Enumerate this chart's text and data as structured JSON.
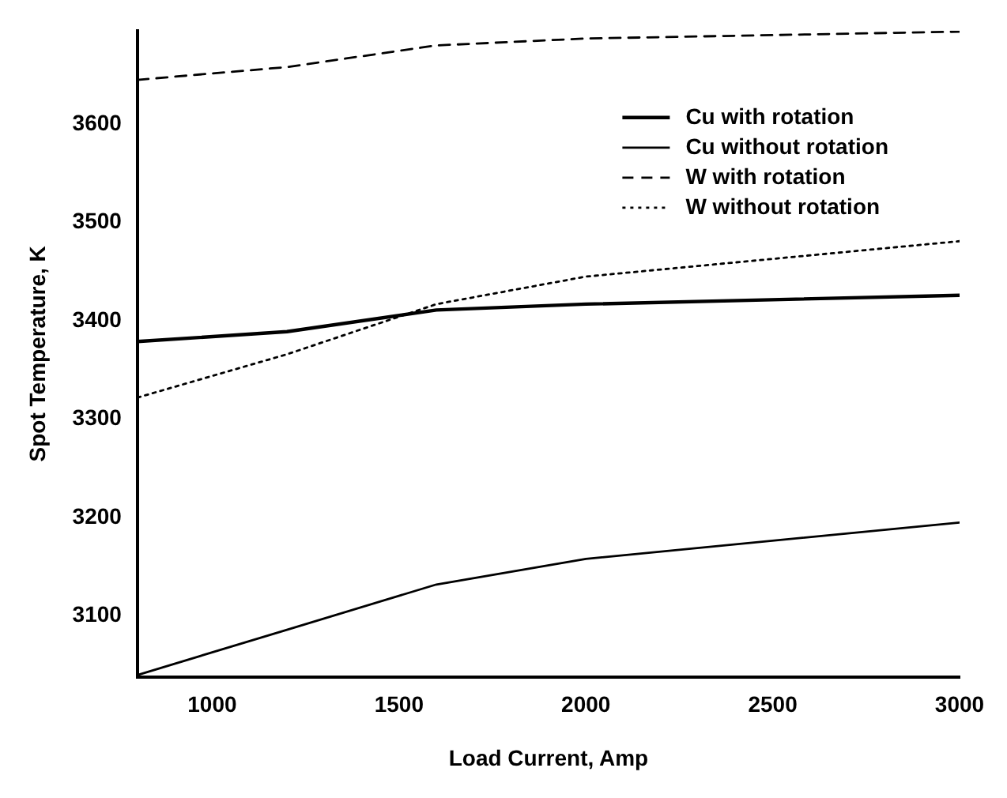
{
  "chart_data": {
    "type": "line",
    "xlabel": "Load Current, Amp",
    "ylabel": "Spot Temperature, K",
    "x": [
      800,
      1200,
      1600,
      2000,
      3000
    ],
    "xlim": [
      800,
      3000
    ],
    "xticks": [
      1000,
      1500,
      2000,
      2500,
      3000
    ],
    "ylim": [
      3038,
      3695
    ],
    "yticks": [
      3100,
      3200,
      3300,
      3400,
      3500,
      3600
    ],
    "grid": false,
    "legend": "top right",
    "marker": "none",
    "series": [
      {
        "name": "Cu with rotation",
        "color": "#000000",
        "line_style": "solid",
        "values": [
          3379,
          3389,
          3411,
          3417,
          3426
        ]
      },
      {
        "name": "Cu without rotation",
        "color": "#000000",
        "line_style": "solid",
        "values": [
          3040,
          3086,
          3132,
          3158,
          3195
        ]
      },
      {
        "name": "W with rotation",
        "color": "#000000",
        "line_style": "dashed",
        "values": [
          3645,
          3658,
          3680,
          3687,
          3694
        ]
      },
      {
        "name": "W without rotation",
        "color": "#000000",
        "line_style": "dotted",
        "values": [
          3322,
          3366,
          3417,
          3445,
          3481
        ]
      }
    ]
  }
}
